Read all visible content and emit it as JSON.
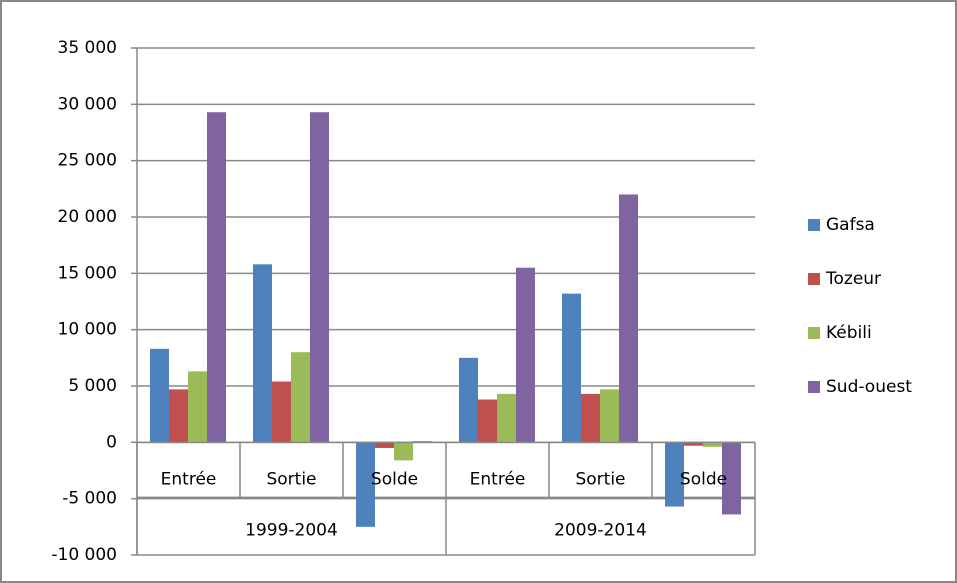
{
  "chart_data": {
    "type": "bar",
    "categories": [
      "Entrée",
      "Sortie",
      "Solde",
      "Entrée",
      "Sortie",
      "Solde"
    ],
    "groups": [
      "1999-2004",
      "2009-2014"
    ],
    "series": [
      {
        "name": "Gafsa",
        "color": "#4f81bd",
        "values": [
          8300,
          15800,
          -7500,
          7500,
          13200,
          -5700
        ]
      },
      {
        "name": "Tozeur",
        "color": "#c0504d",
        "values": [
          4700,
          5400,
          -500,
          3800,
          4300,
          -300
        ]
      },
      {
        "name": "Kébili",
        "color": "#9bbb59",
        "values": [
          6300,
          8000,
          -1600,
          4300,
          4700,
          -400
        ]
      },
      {
        "name": "Sud-ouest",
        "color": "#8064a2",
        "values": [
          29300,
          29300,
          100,
          15500,
          22000,
          -6400
        ]
      }
    ],
    "ylim": [
      -10000,
      35000
    ],
    "yticks": [
      {
        "value": -10000,
        "label": "-10 000"
      },
      {
        "value": -5000,
        "label": "-5 000"
      },
      0,
      {
        "value": 5000,
        "label": "5 000"
      },
      {
        "value": 10000,
        "label": "10 000"
      },
      {
        "value": 15000,
        "label": "15 000"
      },
      {
        "value": 20000,
        "label": "20 000"
      },
      {
        "value": 25000,
        "label": "25 000"
      },
      {
        "value": 30000,
        "label": "30 000"
      },
      {
        "value": 35000,
        "label": "35 000"
      }
    ],
    "grid": true,
    "legend": "right"
  }
}
